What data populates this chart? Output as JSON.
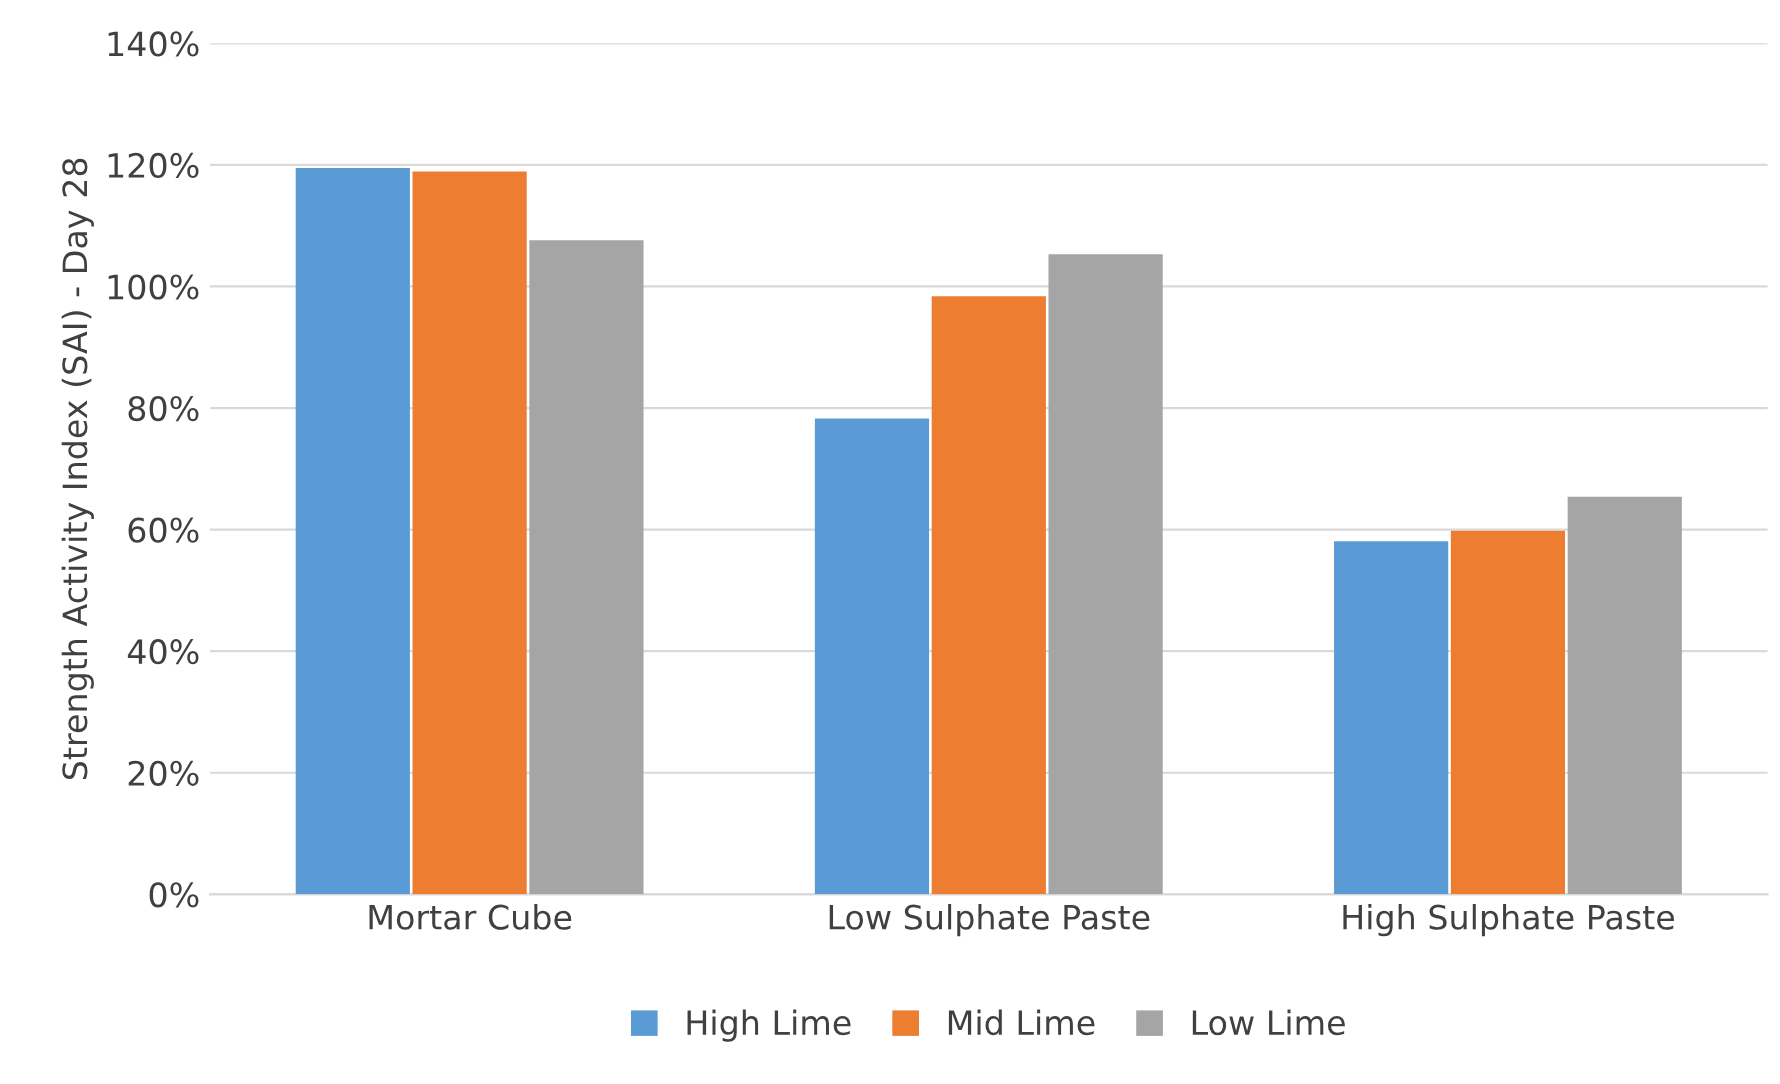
{
  "chart_data": {
    "type": "bar",
    "ylabel": "Strength Activity Index (SAI) - Day 28",
    "categories": [
      "Mortar Cube",
      "Low Sulphate Paste",
      "High Sulphate Paste"
    ],
    "series": [
      {
        "name": "High Lime",
        "color": "#5b9bd5",
        "values": [
          1.195,
          0.783,
          0.581
        ]
      },
      {
        "name": "Mid Lime",
        "color": "#ed7d31",
        "values": [
          1.189,
          0.984,
          0.598
        ]
      },
      {
        "name": "Low Lime",
        "color": "#a5a5a5",
        "values": [
          1.076,
          1.053,
          0.654
        ]
      }
    ],
    "ylim": [
      0,
      1.4
    ],
    "yticks": [
      {
        "value": 0,
        "label": "0%"
      },
      {
        "value": 0.2,
        "label": "20%"
      },
      {
        "value": 0.4,
        "label": "40%"
      },
      {
        "value": 0.6,
        "label": "60%"
      },
      {
        "value": 0.8,
        "label": "80%"
      },
      {
        "value": 1.0,
        "label": "100%"
      },
      {
        "value": 1.2,
        "label": "120%"
      },
      {
        "value": 1.4,
        "label": "140%"
      }
    ],
    "grid": "y",
    "legend": "bottom"
  }
}
